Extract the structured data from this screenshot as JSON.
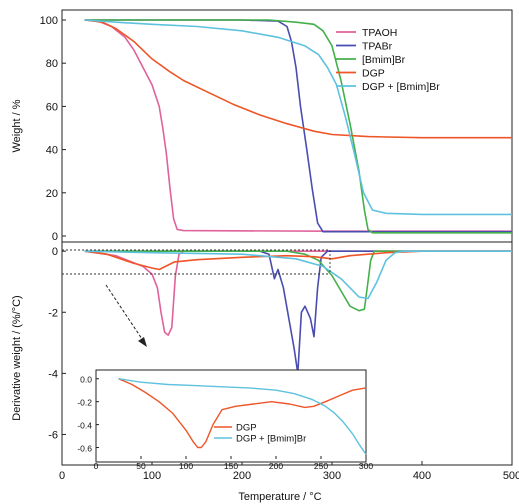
{
  "chart_data": [
    {
      "type": "line",
      "xlabel": "",
      "ylabel": "Weight / %",
      "xlim": [
        0,
        500
      ],
      "ylim": [
        0,
        100
      ],
      "yticks": [
        0,
        20,
        40,
        60,
        80,
        100
      ],
      "legend_position": "top-right",
      "series": [
        {
          "name": "TPAOH",
          "color": "#e0629a",
          "points": [
            [
              25,
              100
            ],
            [
              40,
              99.5
            ],
            [
              55,
              97
            ],
            [
              70,
              92
            ],
            [
              80,
              86
            ],
            [
              90,
              78
            ],
            [
              100,
              70
            ],
            [
              108,
              60
            ],
            [
              112,
              50
            ],
            [
              116,
              38
            ],
            [
              120,
              22
            ],
            [
              124,
              8
            ],
            [
              128,
              3
            ],
            [
              135,
              2.5
            ],
            [
              300,
              2.2
            ],
            [
              500,
              2.2
            ]
          ]
        },
        {
          "name": "TPABr",
          "color": "#4a4db0",
          "points": [
            [
              25,
              100
            ],
            [
              200,
              100
            ],
            [
              240,
              99.5
            ],
            [
              250,
              97
            ],
            [
              255,
              90
            ],
            [
              260,
              78
            ],
            [
              265,
              60
            ],
            [
              272,
              40
            ],
            [
              278,
              22
            ],
            [
              284,
              6
            ],
            [
              290,
              2
            ],
            [
              500,
              2
            ]
          ]
        },
        {
          "name": "[Bmim]Br",
          "color": "#44b04a",
          "points": [
            [
              25,
              100
            ],
            [
              230,
              100
            ],
            [
              260,
              99
            ],
            [
              280,
              98
            ],
            [
              290,
              95
            ],
            [
              300,
              88
            ],
            [
              310,
              72
            ],
            [
              320,
              52
            ],
            [
              330,
              30
            ],
            [
              336,
              12
            ],
            [
              340,
              3
            ],
            [
              345,
              1.5
            ],
            [
              500,
              1.5
            ]
          ]
        },
        {
          "name": "DGP",
          "color": "#ee5527",
          "points": [
            [
              25,
              100
            ],
            [
              45,
              99
            ],
            [
              60,
              96
            ],
            [
              80,
              90
            ],
            [
              100,
              82
            ],
            [
              120,
              76
            ],
            [
              135,
              72
            ],
            [
              160,
              67
            ],
            [
              190,
              61
            ],
            [
              220,
              56
            ],
            [
              250,
              52
            ],
            [
              280,
              48.5
            ],
            [
              300,
              47
            ],
            [
              340,
              46
            ],
            [
              400,
              45.5
            ],
            [
              500,
              45.5
            ]
          ]
        },
        {
          "name": "DGP + [Bmim]Br",
          "color": "#5ec2de",
          "points": [
            [
              25,
              100
            ],
            [
              60,
              99
            ],
            [
              100,
              98
            ],
            [
              150,
              97
            ],
            [
              200,
              95
            ],
            [
              240,
              92
            ],
            [
              270,
              88
            ],
            [
              285,
              84
            ],
            [
              295,
              78
            ],
            [
              305,
              70
            ],
            [
              315,
              55
            ],
            [
              325,
              38
            ],
            [
              335,
              20
            ],
            [
              345,
              12
            ],
            [
              360,
              10.5
            ],
            [
              400,
              10
            ],
            [
              500,
              10
            ]
          ]
        }
      ]
    },
    {
      "type": "line",
      "xlabel": "Temperature / °C",
      "ylabel": "Derivative weight / (%/°C)",
      "xlim": [
        0,
        500
      ],
      "ylim": [
        -7,
        0.3
      ],
      "xticks": [
        0,
        100,
        200,
        300,
        400,
        500
      ],
      "yticks": [
        -6,
        -4,
        -2,
        0
      ],
      "series": [
        {
          "name": "TPAOH",
          "color": "#e0629a",
          "points": [
            [
              25,
              0
            ],
            [
              60,
              -0.15
            ],
            [
              90,
              -0.5
            ],
            [
              100,
              -0.75
            ],
            [
              106,
              -1.2
            ],
            [
              110,
              -2.0
            ],
            [
              114,
              -2.65
            ],
            [
              118,
              -2.75
            ],
            [
              122,
              -2.5
            ],
            [
              126,
              -0.8
            ],
            [
              130,
              -0.1
            ],
            [
              135,
              0
            ],
            [
              500,
              0
            ]
          ]
        },
        {
          "name": "TPABr",
          "color": "#4a4db0",
          "points": [
            [
              25,
              0
            ],
            [
              220,
              0
            ],
            [
              230,
              -0.1
            ],
            [
              236,
              -0.9
            ],
            [
              240,
              -0.6
            ],
            [
              246,
              -1.2
            ],
            [
              252,
              -2.2
            ],
            [
              258,
              -3.2
            ],
            [
              262,
              -4.0
            ],
            [
              266,
              -2.0
            ],
            [
              270,
              -1.8
            ],
            [
              276,
              -2.2
            ],
            [
              280,
              -2.8
            ],
            [
              284,
              -1.2
            ],
            [
              288,
              -0.2
            ],
            [
              295,
              0
            ],
            [
              500,
              0
            ]
          ]
        },
        {
          "name": "[Bmim]Br",
          "color": "#44b04a",
          "points": [
            [
              25,
              0
            ],
            [
              250,
              0
            ],
            [
              270,
              -0.1
            ],
            [
              285,
              -0.3
            ],
            [
              300,
              -0.8
            ],
            [
              310,
              -1.3
            ],
            [
              320,
              -1.8
            ],
            [
              330,
              -1.95
            ],
            [
              336,
              -1.9
            ],
            [
              340,
              -1.0
            ],
            [
              343,
              -0.3
            ],
            [
              347,
              0
            ],
            [
              500,
              0
            ]
          ]
        },
        {
          "name": "DGP",
          "color": "#ee5527",
          "points": [
            [
              25,
              0
            ],
            [
              50,
              -0.1
            ],
            [
              80,
              -0.4
            ],
            [
              100,
              -0.55
            ],
            [
              108,
              -0.6
            ],
            [
              115,
              -0.5
            ],
            [
              125,
              -0.35
            ],
            [
              150,
              -0.28
            ],
            [
              200,
              -0.2
            ],
            [
              250,
              -0.15
            ],
            [
              280,
              -0.18
            ],
            [
              300,
              -0.25
            ],
            [
              320,
              -0.15
            ],
            [
              360,
              -0.05
            ],
            [
              400,
              0
            ],
            [
              500,
              0
            ]
          ]
        },
        {
          "name": "DGP + [Bmim]Br",
          "color": "#5ec2de",
          "points": [
            [
              25,
              0
            ],
            [
              100,
              -0.05
            ],
            [
              200,
              -0.1
            ],
            [
              260,
              -0.25
            ],
            [
              290,
              -0.5
            ],
            [
              310,
              -0.9
            ],
            [
              320,
              -1.2
            ],
            [
              330,
              -1.5
            ],
            [
              340,
              -1.55
            ],
            [
              350,
              -1.0
            ],
            [
              360,
              -0.3
            ],
            [
              370,
              -0.05
            ],
            [
              380,
              0
            ],
            [
              500,
              0
            ]
          ]
        }
      ]
    },
    {
      "type": "line",
      "xlabel": "",
      "ylabel": "",
      "xlim": [
        0,
        300
      ],
      "ylim": [
        -0.7,
        0.05
      ],
      "xticks": [
        0,
        50,
        100,
        150,
        200,
        250,
        300
      ],
      "yticks": [
        0.0,
        -0.2,
        -0.4,
        -0.6
      ],
      "legend_position": "bottom-right",
      "series": [
        {
          "name": "DGP",
          "color": "#ee5527",
          "points": [
            [
              25,
              0.0
            ],
            [
              40,
              -0.05
            ],
            [
              55,
              -0.12
            ],
            [
              70,
              -0.2
            ],
            [
              85,
              -0.3
            ],
            [
              100,
              -0.45
            ],
            [
              108,
              -0.55
            ],
            [
              113,
              -0.6
            ],
            [
              117,
              -0.6
            ],
            [
              122,
              -0.55
            ],
            [
              130,
              -0.4
            ],
            [
              140,
              -0.27
            ],
            [
              155,
              -0.24
            ],
            [
              175,
              -0.22
            ],
            [
              195,
              -0.2
            ],
            [
              215,
              -0.22
            ],
            [
              232,
              -0.25
            ],
            [
              242,
              -0.24
            ],
            [
              255,
              -0.2
            ],
            [
              270,
              -0.15
            ],
            [
              285,
              -0.1
            ],
            [
              300,
              -0.08
            ]
          ]
        },
        {
          "name": "DGP + [Bmim]Br",
          "color": "#5ec2de",
          "points": [
            [
              25,
              0.0
            ],
            [
              50,
              -0.03
            ],
            [
              80,
              -0.05
            ],
            [
              110,
              -0.06
            ],
            [
              140,
              -0.07
            ],
            [
              170,
              -0.08
            ],
            [
              200,
              -0.1
            ],
            [
              220,
              -0.13
            ],
            [
              240,
              -0.18
            ],
            [
              255,
              -0.24
            ],
            [
              265,
              -0.3
            ],
            [
              275,
              -0.38
            ],
            [
              285,
              -0.48
            ],
            [
              293,
              -0.58
            ],
            [
              300,
              -0.66
            ]
          ]
        }
      ]
    }
  ]
}
